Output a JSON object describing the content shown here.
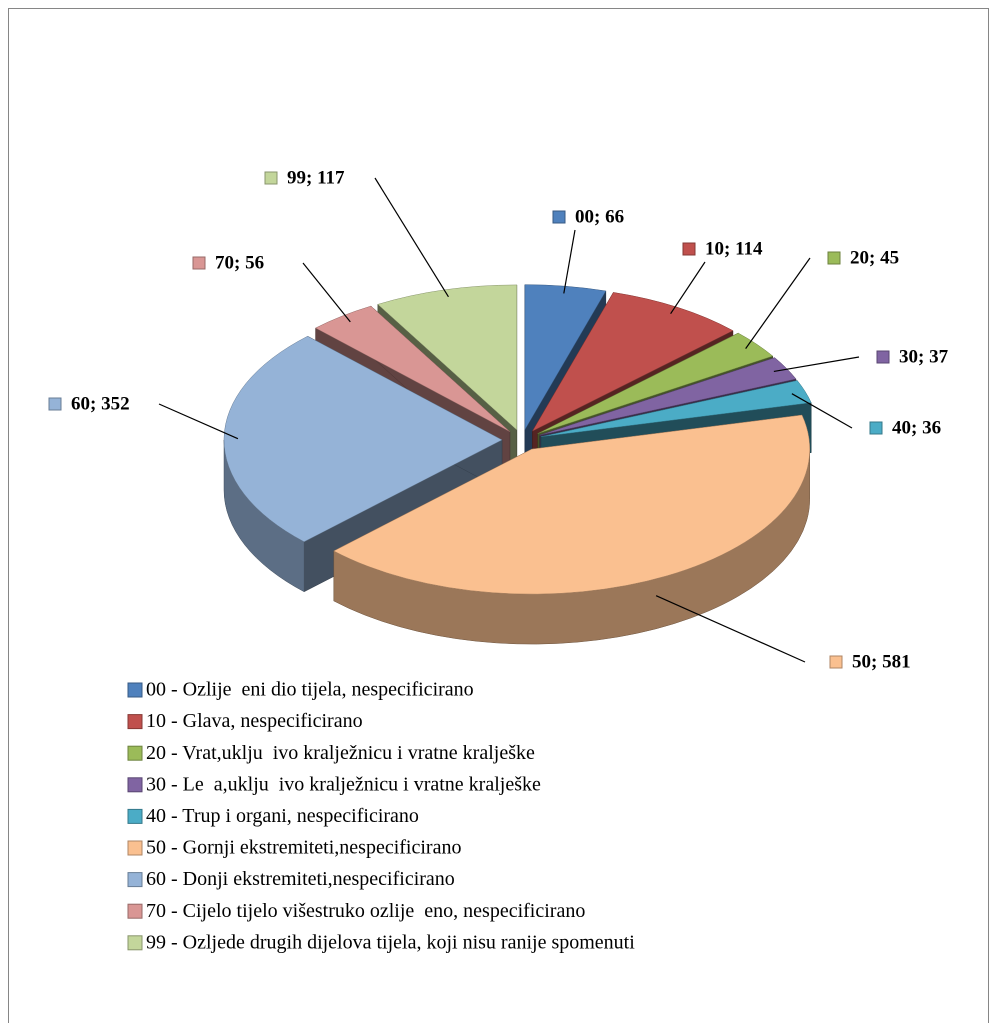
{
  "chart_data": {
    "type": "pie",
    "categories": [
      "00 - Ozlije  eni dio tijela, nespecificirano",
      "10 - Glava, nespecificirano",
      "20 - Vrat,uklju  ivo kralježnicu i vratne kralješke",
      "30 - Le  a,uklju  ivo kralježnicu i vratne kralješke",
      "40 - Trup i organi, nespecificirano",
      "50 - Gornji ekstremiteti,nespecificirano",
      "60 - Donji ekstremiteti,nespecificirano",
      "70 - Cijelo tijelo višestruko ozlije  eno, nespecificirano",
      "99 - Ozljede drugih dijelova tijela, koji nisu ranije spomenuti"
    ],
    "values": [
      66,
      114,
      45,
      37,
      36,
      581,
      352,
      56,
      117
    ],
    "value_labels": [
      "00; 66",
      "10; 114",
      "20; 45",
      "30; 37",
      "40; 36",
      "50; 581",
      "60; 352",
      "70; 56",
      "99; 117"
    ],
    "colors": [
      "#4f81bd",
      "#c0504d",
      "#9bbb59",
      "#8064a2",
      "#4bacc6",
      "#fac090",
      "#95b3d7",
      "#d99694",
      "#c3d69b"
    ]
  }
}
